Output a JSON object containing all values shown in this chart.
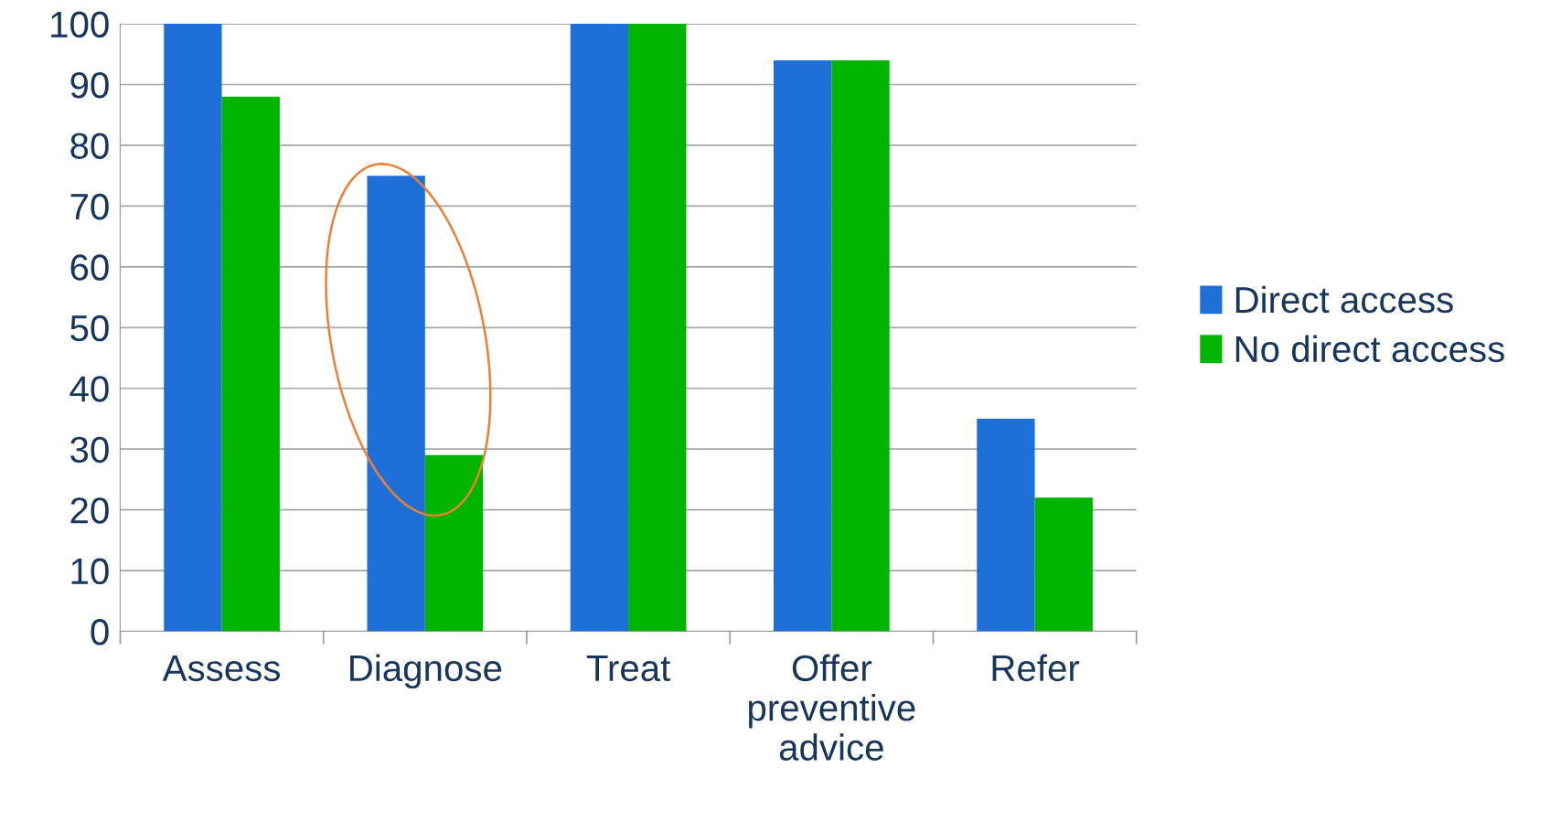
{
  "chart_data": {
    "type": "bar",
    "categories": [
      "Assess",
      "Diagnose",
      "Treat",
      "Offer preventive advice",
      "Refer"
    ],
    "series": [
      {
        "name": "Direct access",
        "color": "#1f6fd9",
        "values": [
          100,
          75,
          100,
          94,
          35
        ]
      },
      {
        "name": "No direct access",
        "color": "#00b400",
        "values": [
          88,
          29,
          100,
          94,
          22
        ]
      }
    ],
    "ylim": [
      0,
      100
    ],
    "yticks": [
      0,
      10,
      20,
      30,
      40,
      50,
      60,
      70,
      80,
      90,
      100
    ],
    "grid": "y",
    "legend": "right"
  }
}
